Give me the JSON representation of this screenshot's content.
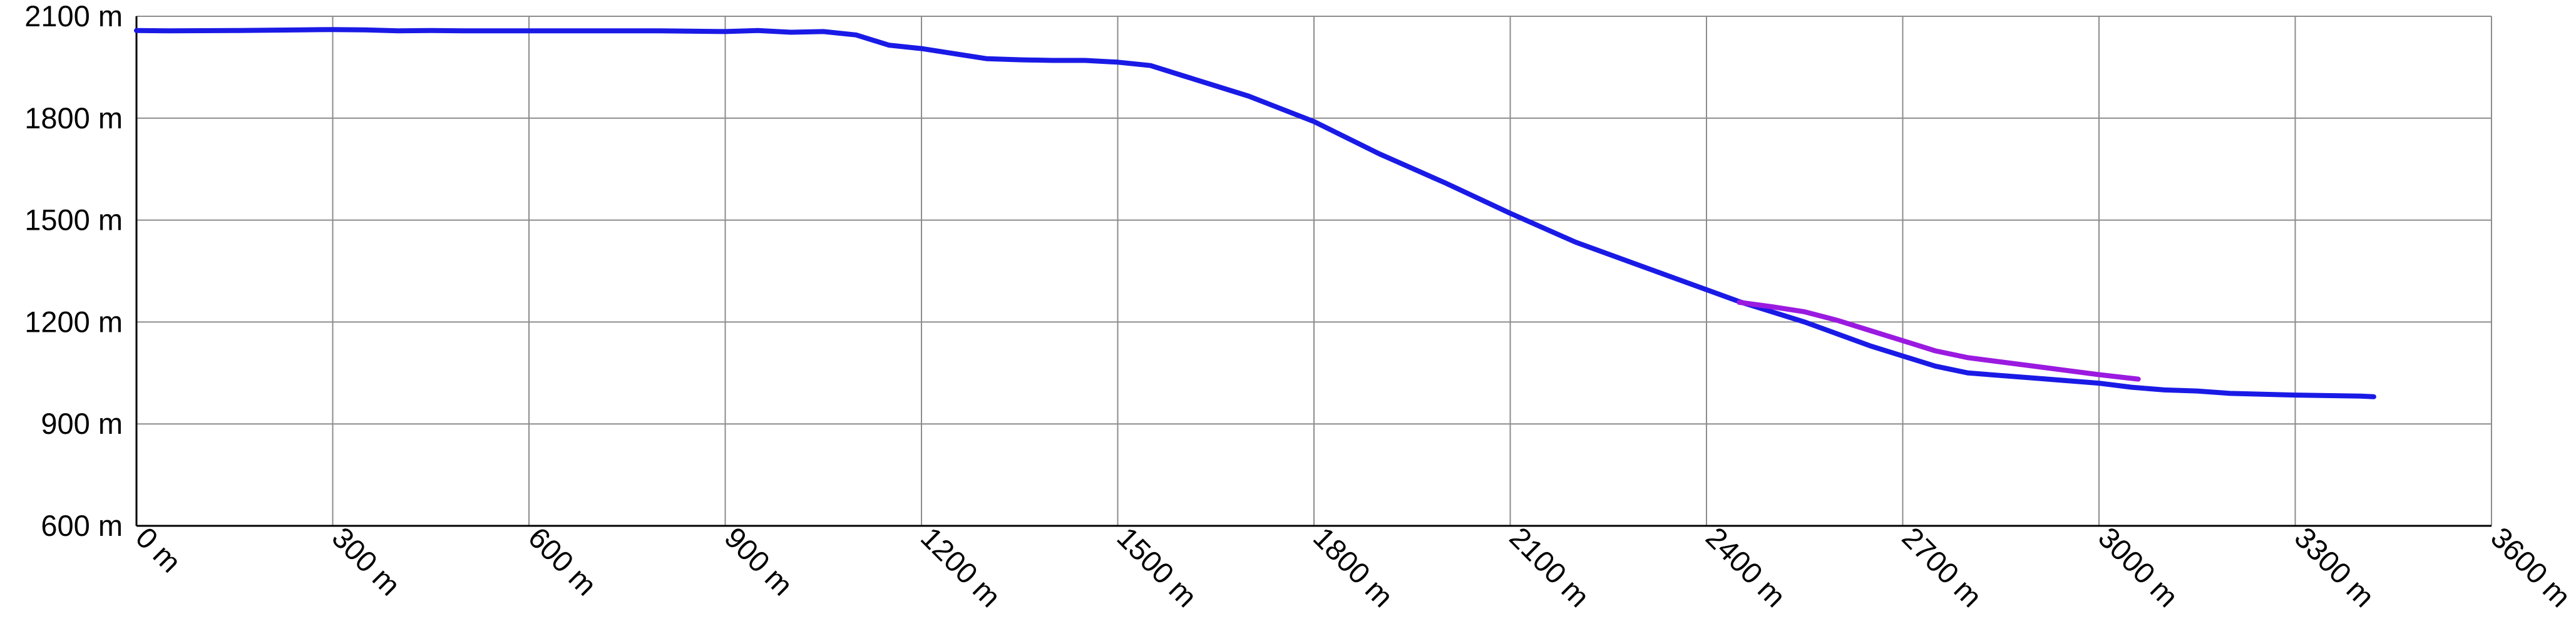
{
  "chart_data": {
    "type": "line",
    "title": "",
    "xlabel": "",
    "ylabel": "",
    "xlim": [
      0,
      3600
    ],
    "ylim": [
      600,
      2100
    ],
    "x_ticks": [
      0,
      300,
      600,
      900,
      1200,
      1500,
      1800,
      2100,
      2400,
      2700,
      3000,
      3300,
      3600
    ],
    "y_ticks": [
      600,
      900,
      1200,
      1500,
      1800,
      2100
    ],
    "x_tick_labels": [
      "0 m",
      "300 m",
      "600 m",
      "900 m",
      "1200 m",
      "1500 m",
      "1800 m",
      "2100 m",
      "2400 m",
      "2700 m",
      "3000 m",
      "3300 m",
      "3600 m"
    ],
    "y_tick_labels": [
      "600 m",
      "900 m",
      "1200 m",
      "1500 m",
      "1800 m",
      "2100 m"
    ],
    "grid": true,
    "legend": "none",
    "series": [
      {
        "color": "#1a1ae6",
        "x": [
          0,
          50,
          150,
          250,
          300,
          350,
          400,
          450,
          500,
          600,
          700,
          800,
          900,
          950,
          1000,
          1050,
          1100,
          1150,
          1200,
          1250,
          1300,
          1350,
          1400,
          1450,
          1500,
          1550,
          1600,
          1700,
          1800,
          1900,
          2000,
          2100,
          2200,
          2300,
          2400,
          2450,
          2500,
          2550,
          2600,
          2650,
          2700,
          2750,
          2800,
          2900,
          3000,
          3050,
          3100,
          3150,
          3200,
          3300,
          3400,
          3420
        ],
        "y": [
          2058,
          2057,
          2058,
          2060,
          2061,
          2060,
          2057,
          2058,
          2057,
          2057,
          2057,
          2057,
          2055,
          2058,
          2053,
          2055,
          2045,
          2015,
          2005,
          1990,
          1975,
          1972,
          1970,
          1970,
          1965,
          1955,
          1925,
          1865,
          1790,
          1695,
          1610,
          1520,
          1435,
          1365,
          1295,
          1260,
          1230,
          1200,
          1165,
          1130,
          1100,
          1070,
          1050,
          1035,
          1020,
          1008,
          1000,
          997,
          990,
          985,
          982,
          980
        ]
      },
      {
        "color": "#9b1ae0",
        "x": [
          2450,
          2500,
          2550,
          2600,
          2650,
          2700,
          2750,
          2800,
          2900,
          3000,
          3060
        ],
        "y": [
          1258,
          1245,
          1230,
          1205,
          1175,
          1145,
          1115,
          1095,
          1070,
          1045,
          1032
        ]
      }
    ]
  }
}
